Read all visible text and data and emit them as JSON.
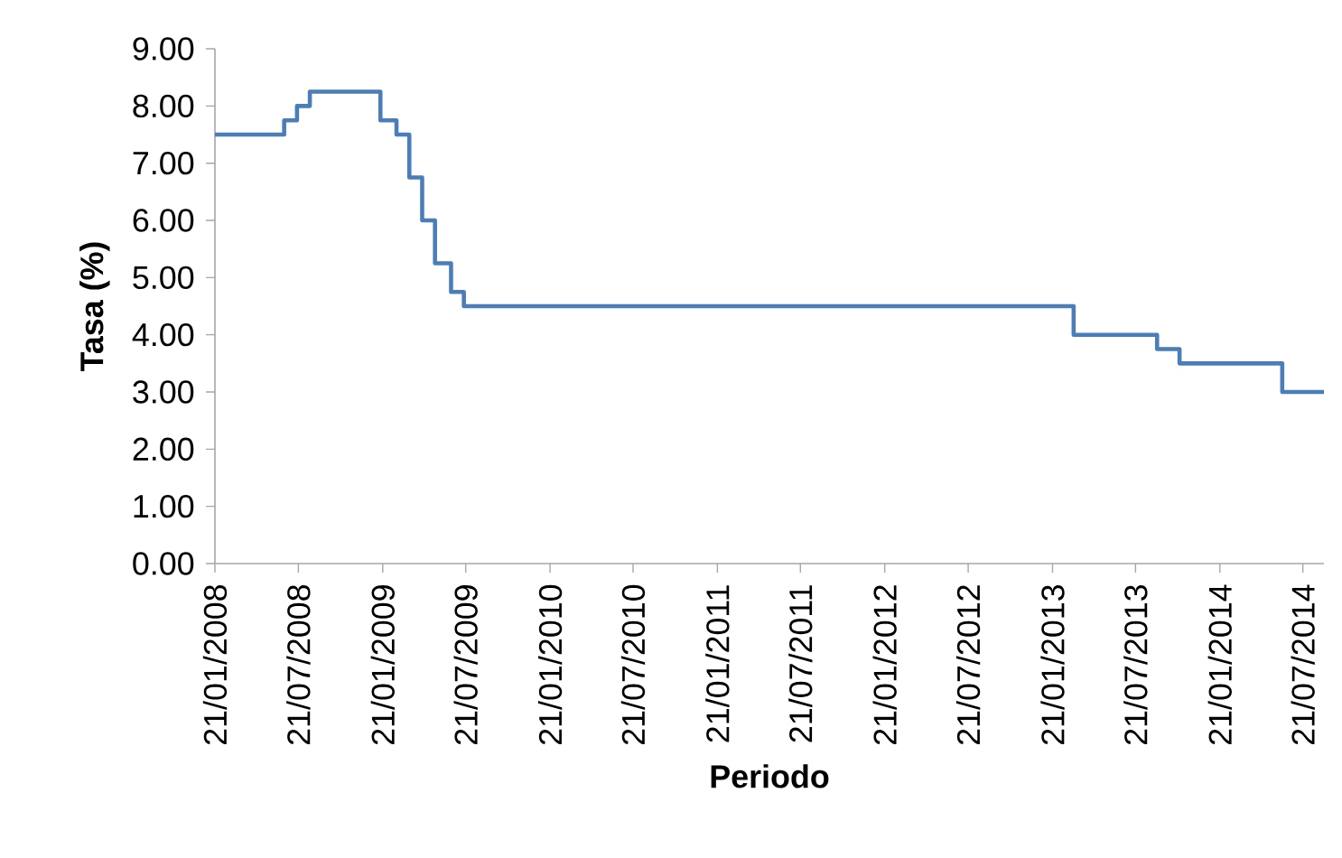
{
  "chart_data": {
    "type": "step",
    "xlabel": "Periodo",
    "ylabel": "Tasa (%)",
    "x": [
      "2008-01-21",
      "2008-06-20",
      "2008-07-18",
      "2008-08-15",
      "2009-01-16",
      "2009-02-20",
      "2009-03-20",
      "2009-04-17",
      "2009-05-15",
      "2009-06-19",
      "2009-07-17",
      "2013-03-08",
      "2013-09-06",
      "2013-10-25",
      "2014-06-06",
      "2014-09-05"
    ],
    "series": [
      {
        "color": "#4a7ebb",
        "values": [
          7.5,
          7.75,
          8.0,
          8.25,
          7.75,
          7.5,
          6.75,
          6.0,
          5.25,
          4.75,
          4.5,
          4.0,
          3.75,
          3.5,
          3.0,
          3.0
        ]
      }
    ],
    "xlim": [
      "2008-01-21",
      "2014-09-05"
    ],
    "xticks": [
      {
        "value": "2008-01-21",
        "label": "21/01/2008"
      },
      {
        "value": "2008-07-21",
        "label": "21/07/2008"
      },
      {
        "value": "2009-01-21",
        "label": "21/01/2009"
      },
      {
        "value": "2009-07-21",
        "label": "21/07/2009"
      },
      {
        "value": "2010-01-21",
        "label": "21/01/2010"
      },
      {
        "value": "2010-07-21",
        "label": "21/07/2010"
      },
      {
        "value": "2011-01-21",
        "label": "21/01/2011"
      },
      {
        "value": "2011-07-21",
        "label": "21/07/2011"
      },
      {
        "value": "2012-01-21",
        "label": "21/01/2012"
      },
      {
        "value": "2012-07-21",
        "label": "21/07/2012"
      },
      {
        "value": "2013-01-21",
        "label": "21/01/2013"
      },
      {
        "value": "2013-07-21",
        "label": "21/07/2013"
      },
      {
        "value": "2014-01-21",
        "label": "21/01/2014"
      },
      {
        "value": "2014-07-21",
        "label": "21/07/2014"
      }
    ],
    "ylim": [
      0,
      9
    ],
    "yticks": [
      {
        "value": 0,
        "label": "0.00"
      },
      {
        "value": 1,
        "label": "1.00"
      },
      {
        "value": 2,
        "label": "2.00"
      },
      {
        "value": 3,
        "label": "3.00"
      },
      {
        "value": 4,
        "label": "4.00"
      },
      {
        "value": 5,
        "label": "5.00"
      },
      {
        "value": 6,
        "label": "6.00"
      },
      {
        "value": 7,
        "label": "7.00"
      },
      {
        "value": 8,
        "label": "8.00"
      },
      {
        "value": 9,
        "label": "9.00"
      }
    ],
    "grid": false,
    "marker": "none",
    "line_style": "solid"
  }
}
